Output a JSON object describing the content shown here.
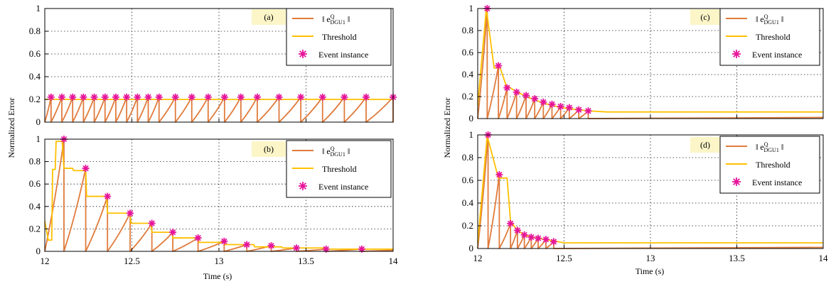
{
  "figure": {
    "x_tick_labels": [
      "12",
      "12.5",
      "13",
      "13.5",
      "14"
    ],
    "xlabel": "Time (s)",
    "ylabel": "Normalized Error"
  },
  "colors": {
    "error": "#e07b3c",
    "threshold": "#ffc000",
    "event": "#e6149a",
    "grid": "#222222",
    "tag_bg": "#fcf5c8"
  },
  "chart_data": [
    {
      "type": "line",
      "panel": "(a)",
      "xlim": [
        12,
        14
      ],
      "ylim": [
        0,
        1
      ],
      "x_ticks": [
        12,
        12.5,
        13,
        13.5,
        14
      ],
      "y_ticks": [
        0,
        0.2,
        0.4,
        0.6,
        0.8,
        1
      ],
      "y_tick_labels": [
        "0",
        "0.2",
        "0.4",
        "0.6",
        "0.8",
        "1"
      ],
      "grid": true,
      "legend_position": "top-right",
      "legend": [
        "‖ e^Q_DGU1 ‖",
        "Threshold",
        "Event instance"
      ],
      "threshold": {
        "x": [
          12,
          14
        ],
        "y": [
          0.2,
          0.2
        ]
      },
      "events": [
        {
          "x": 12.036,
          "y": 0.22
        },
        {
          "x": 12.098,
          "y": 0.22
        },
        {
          "x": 12.16,
          "y": 0.22
        },
        {
          "x": 12.222,
          "y": 0.22
        },
        {
          "x": 12.284,
          "y": 0.22
        },
        {
          "x": 12.346,
          "y": 0.22
        },
        {
          "x": 12.408,
          "y": 0.22
        },
        {
          "x": 12.47,
          "y": 0.22
        },
        {
          "x": 12.532,
          "y": 0.22
        },
        {
          "x": 12.594,
          "y": 0.22
        },
        {
          "x": 12.656,
          "y": 0.22
        },
        {
          "x": 12.75,
          "y": 0.22
        },
        {
          "x": 12.844,
          "y": 0.22
        },
        {
          "x": 12.938,
          "y": 0.22
        },
        {
          "x": 13.032,
          "y": 0.22
        },
        {
          "x": 13.126,
          "y": 0.22
        },
        {
          "x": 13.22,
          "y": 0.22
        },
        {
          "x": 13.345,
          "y": 0.22
        },
        {
          "x": 13.47,
          "y": 0.22
        },
        {
          "x": 13.595,
          "y": 0.22
        },
        {
          "x": 13.72,
          "y": 0.22
        },
        {
          "x": 13.845,
          "y": 0.22
        },
        {
          "x": 14.0,
          "y": 0.22
        }
      ]
    },
    {
      "type": "line",
      "panel": "(b)",
      "xlim": [
        12,
        14
      ],
      "ylim": [
        0,
        1
      ],
      "x_ticks": [
        12,
        12.5,
        13,
        13.5,
        14
      ],
      "y_ticks": [
        0,
        0.2,
        0.4,
        0.6,
        0.8,
        1
      ],
      "y_tick_labels": [
        "0",
        "0.2",
        "0.4",
        "0.6",
        "0.8",
        "1"
      ],
      "grid": true,
      "legend_position": "top-right",
      "legend": [
        "‖ e^Q_DGU1 ‖",
        "Threshold",
        "Event instance"
      ],
      "threshold": {
        "x": [
          12.0,
          12.02,
          12.04,
          12.045,
          12.06,
          12.065,
          12.1,
          12.11,
          12.16,
          12.165,
          12.235,
          12.24,
          12.355,
          12.36,
          12.49,
          12.495,
          12.61,
          12.615,
          12.73,
          12.735,
          12.88,
          12.885,
          13.03,
          13.035,
          13.2,
          13.205,
          13.36,
          13.365,
          13.6,
          13.605,
          14.0
        ],
        "y": [
          0.27,
          0.1,
          0.1,
          0.73,
          0.73,
          0.98,
          0.98,
          0.74,
          0.74,
          0.72,
          0.72,
          0.49,
          0.49,
          0.34,
          0.34,
          0.25,
          0.25,
          0.17,
          0.17,
          0.12,
          0.12,
          0.08,
          0.08,
          0.06,
          0.06,
          0.04,
          0.04,
          0.03,
          0.03,
          0.02,
          0.02
        ]
      },
      "events": [
        {
          "x": 12.11,
          "y": 1.0
        },
        {
          "x": 12.235,
          "y": 0.74
        },
        {
          "x": 12.36,
          "y": 0.49
        },
        {
          "x": 12.49,
          "y": 0.34
        },
        {
          "x": 12.615,
          "y": 0.25
        },
        {
          "x": 12.735,
          "y": 0.17
        },
        {
          "x": 12.88,
          "y": 0.12
        },
        {
          "x": 13.03,
          "y": 0.09
        },
        {
          "x": 13.16,
          "y": 0.06
        },
        {
          "x": 13.3,
          "y": 0.05
        },
        {
          "x": 13.445,
          "y": 0.03
        },
        {
          "x": 13.615,
          "y": 0.02
        },
        {
          "x": 13.82,
          "y": 0.02
        }
      ]
    },
    {
      "type": "line",
      "panel": "(c)",
      "xlim": [
        12,
        14
      ],
      "ylim": [
        0,
        1
      ],
      "x_ticks": [
        12,
        12.5,
        13,
        13.5,
        14
      ],
      "y_ticks": [
        0,
        0.2,
        0.4,
        0.6,
        0.8,
        1
      ],
      "y_tick_labels": [
        "0",
        "0.2",
        "0.4",
        "0.6",
        "0.8",
        "1"
      ],
      "grid": true,
      "legend_position": "top-right",
      "legend": [
        "‖ e^Q_DGU1 ‖",
        "Threshold",
        "Event instance"
      ],
      "threshold": {
        "x": [
          12.0,
          12.05,
          12.095,
          12.13,
          12.165,
          12.22,
          12.28,
          12.33,
          12.38,
          12.43,
          12.48,
          12.53,
          12.585,
          12.64,
          12.75,
          14.0
        ],
        "y": [
          0.12,
          1.0,
          0.46,
          0.46,
          0.3,
          0.25,
          0.2,
          0.17,
          0.14,
          0.12,
          0.1,
          0.09,
          0.08,
          0.07,
          0.06,
          0.06
        ]
      },
      "events": [
        {
          "x": 12.055,
          "y": 1.0
        },
        {
          "x": 12.12,
          "y": 0.48
        },
        {
          "x": 12.17,
          "y": 0.28
        },
        {
          "x": 12.225,
          "y": 0.24
        },
        {
          "x": 12.28,
          "y": 0.21
        },
        {
          "x": 12.33,
          "y": 0.18
        },
        {
          "x": 12.38,
          "y": 0.15
        },
        {
          "x": 12.43,
          "y": 0.13
        },
        {
          "x": 12.48,
          "y": 0.11
        },
        {
          "x": 12.53,
          "y": 0.1
        },
        {
          "x": 12.585,
          "y": 0.08
        },
        {
          "x": 12.64,
          "y": 0.07
        }
      ]
    },
    {
      "type": "line",
      "panel": "(d)",
      "xlim": [
        12,
        14
      ],
      "ylim": [
        0,
        1
      ],
      "x_ticks": [
        12,
        12.5,
        13,
        13.5,
        14
      ],
      "y_ticks": [
        0,
        0.2,
        0.4,
        0.6,
        0.8,
        1
      ],
      "y_tick_labels": [
        "0",
        "0.2",
        "0.4",
        "0.6",
        "0.8",
        "1"
      ],
      "grid": true,
      "legend_position": "top-right",
      "legend": [
        "‖ e^Q_DGU1 ‖",
        "Threshold",
        "Event instance"
      ],
      "threshold": {
        "x": [
          12.0,
          12.055,
          12.12,
          12.17,
          12.19,
          12.23,
          12.27,
          12.31,
          12.35,
          12.39,
          12.43,
          12.5,
          14.0
        ],
        "y": [
          0.05,
          0.99,
          0.62,
          0.62,
          0.24,
          0.16,
          0.12,
          0.1,
          0.09,
          0.08,
          0.07,
          0.05,
          0.05
        ]
      },
      "events": [
        {
          "x": 12.06,
          "y": 1.0
        },
        {
          "x": 12.125,
          "y": 0.65
        },
        {
          "x": 12.19,
          "y": 0.22
        },
        {
          "x": 12.23,
          "y": 0.16
        },
        {
          "x": 12.27,
          "y": 0.12
        },
        {
          "x": 12.31,
          "y": 0.1
        },
        {
          "x": 12.35,
          "y": 0.09
        },
        {
          "x": 12.395,
          "y": 0.08
        },
        {
          "x": 12.44,
          "y": 0.06
        }
      ]
    }
  ]
}
